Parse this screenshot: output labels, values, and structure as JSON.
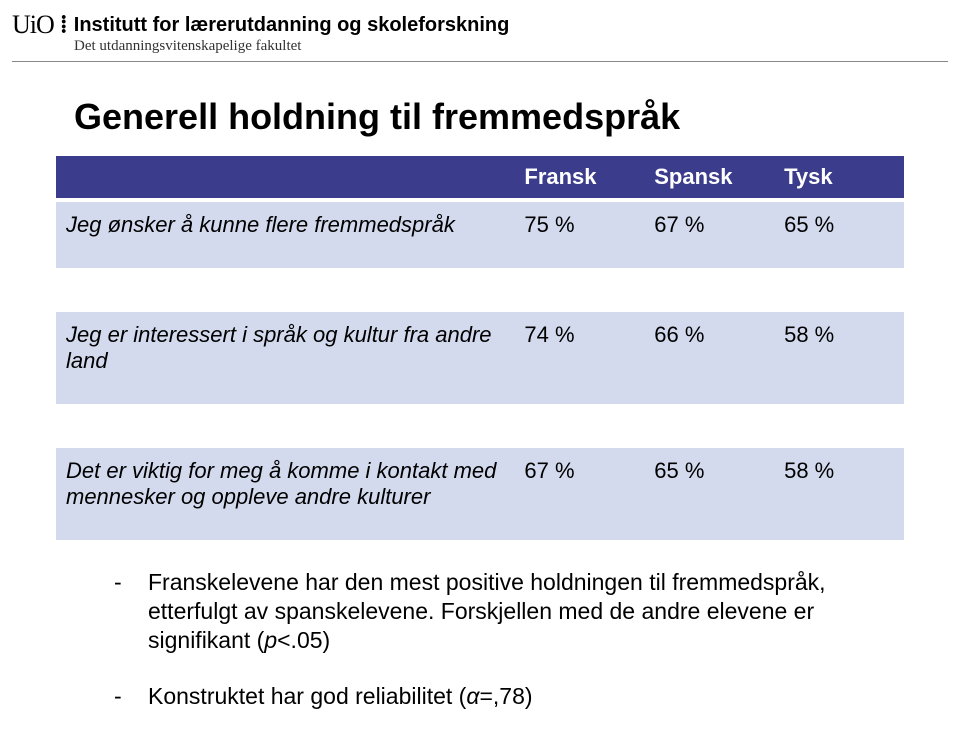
{
  "header": {
    "logo_text": "UiO",
    "separator": "⁞",
    "institution": "Institutt for lærerutdanning og skoleforskning",
    "faculty": "Det utdanningsvitenskapelige fakultet"
  },
  "title": "Generell holdning til fremmedspråk",
  "table": {
    "header_bg": "#3b3c8c",
    "header_fg": "#ffffff",
    "cell_bg": "#d3daee",
    "columns": [
      "Fransk",
      "Spansk",
      "Tysk"
    ],
    "rows": [
      {
        "label": "Jeg ønsker å kunne flere fremmedspråk",
        "values": [
          "75 %",
          "67 %",
          "65 %"
        ]
      },
      {
        "label": "Jeg er interessert i språk og kultur fra andre land",
        "values": [
          "74 %",
          "66 %",
          "58 %"
        ]
      },
      {
        "label": "Det er viktig for meg å komme i kontakt med mennesker og oppleve andre kulturer",
        "values": [
          "67 %",
          "65 %",
          "58 %"
        ]
      }
    ],
    "label_fontstyle": "italic",
    "fontsize": 22
  },
  "findings": [
    {
      "pre": "Franskelevene har den mest positive holdningen til fremmedspråk, etterfulgt av spanskelevene. Forskjellen med de andre elevene er signifikant (",
      "ital": "p",
      "post": "<.05)"
    },
    {
      "pre": "Konstruktet har god reliabilitet (",
      "ital": "α",
      "post": "=,78)"
    }
  ]
}
